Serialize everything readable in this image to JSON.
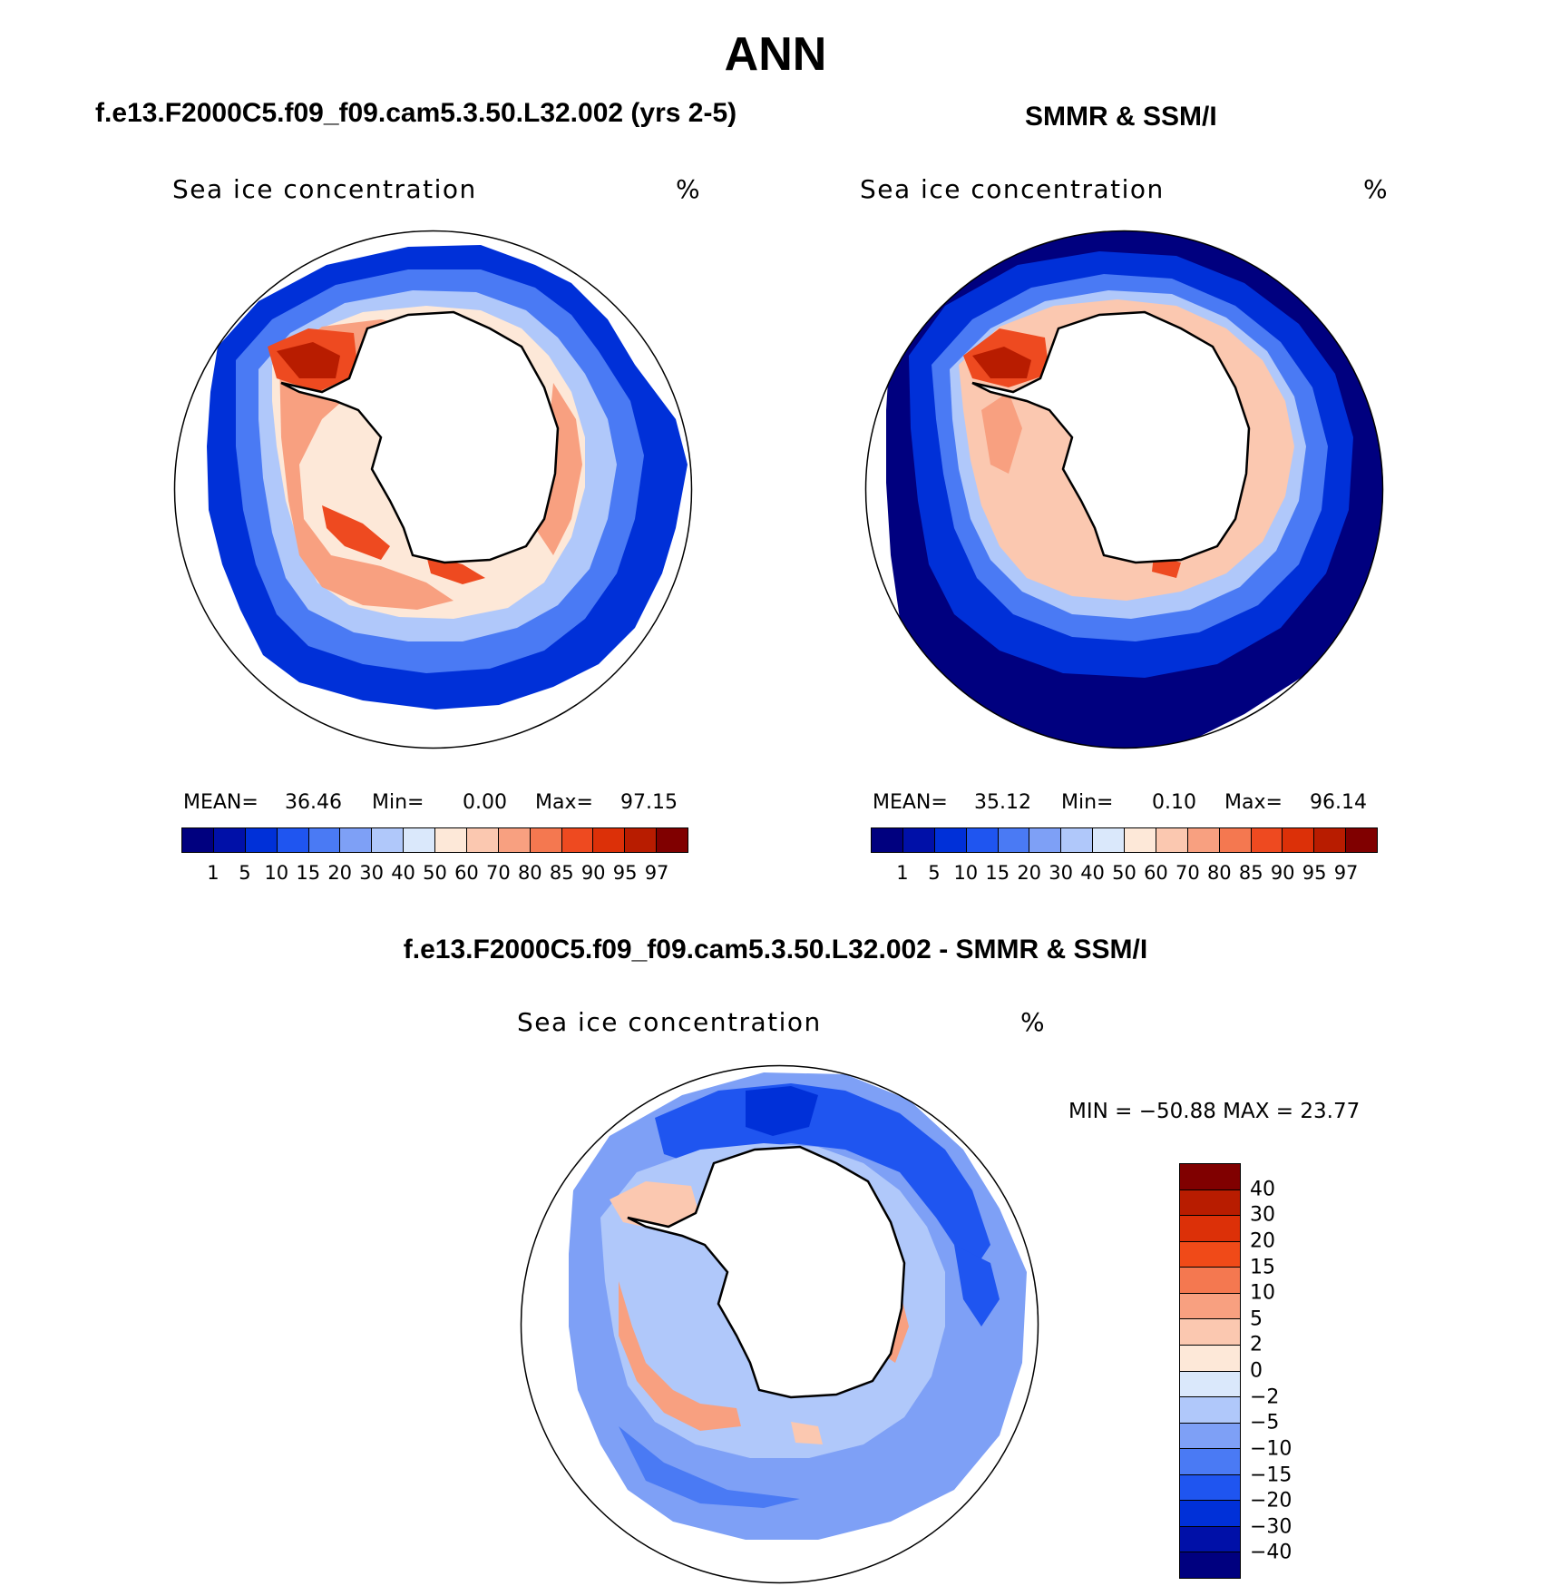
{
  "figure": {
    "title": "ANN",
    "panel1_title": "f.e13.F2000C5.f09_f09.cam5.3.50.L32.002 (yrs 2-5)",
    "panel2_title": "SMMR & SSM/I",
    "panel3_title": "f.e13.F2000C5.f09_f09.cam5.3.50.L32.002 - SMMR & SSM/I"
  },
  "panels": [
    {
      "variable": "Sea ice concentration",
      "units": "%",
      "mean_label": "MEAN=",
      "mean": "36.46",
      "min_label": "Min=",
      "min": "0.00",
      "max_label": "Max=",
      "max": "97.15"
    },
    {
      "variable": "Sea ice concentration",
      "units": "%",
      "mean_label": "MEAN=",
      "mean": "35.12",
      "min_label": "Min=",
      "min": "0.10",
      "max_label": "Max=",
      "max": "96.14"
    },
    {
      "variable": "Sea ice concentration",
      "units": "%",
      "minmax_text": "MIN = −50.88  MAX =   23.77"
    }
  ],
  "colorbar_abs": {
    "colors": [
      "#00007f",
      "#0010a8",
      "#0030d8",
      "#1f55f0",
      "#4a7af4",
      "#7ea0f6",
      "#b0c8fa",
      "#dae8fb",
      "#fde8d8",
      "#fbc8b0",
      "#f8a080",
      "#f47850",
      "#ee4a20",
      "#dc3008",
      "#b81c00",
      "#800000"
    ],
    "labels": [
      "1",
      "5",
      "10",
      "15",
      "20",
      "30",
      "40",
      "50",
      "60",
      "70",
      "80",
      "85",
      "90",
      "95",
      "97"
    ]
  },
  "colorbar_diff": {
    "colors": [
      "#800000",
      "#b81c00",
      "#dc3008",
      "#f04a18",
      "#f47850",
      "#f8a080",
      "#fbc8b0",
      "#fde8d8",
      "#dae8fb",
      "#b0c8fa",
      "#7ea0f6",
      "#4a7af4",
      "#1f55f0",
      "#0030d8",
      "#0010a8",
      "#00007f"
    ],
    "labels": [
      "40",
      "30",
      "20",
      "15",
      "10",
      "5",
      "2",
      "0",
      "−2",
      "−5",
      "−10",
      "−15",
      "−20",
      "−30",
      "−40"
    ]
  }
}
